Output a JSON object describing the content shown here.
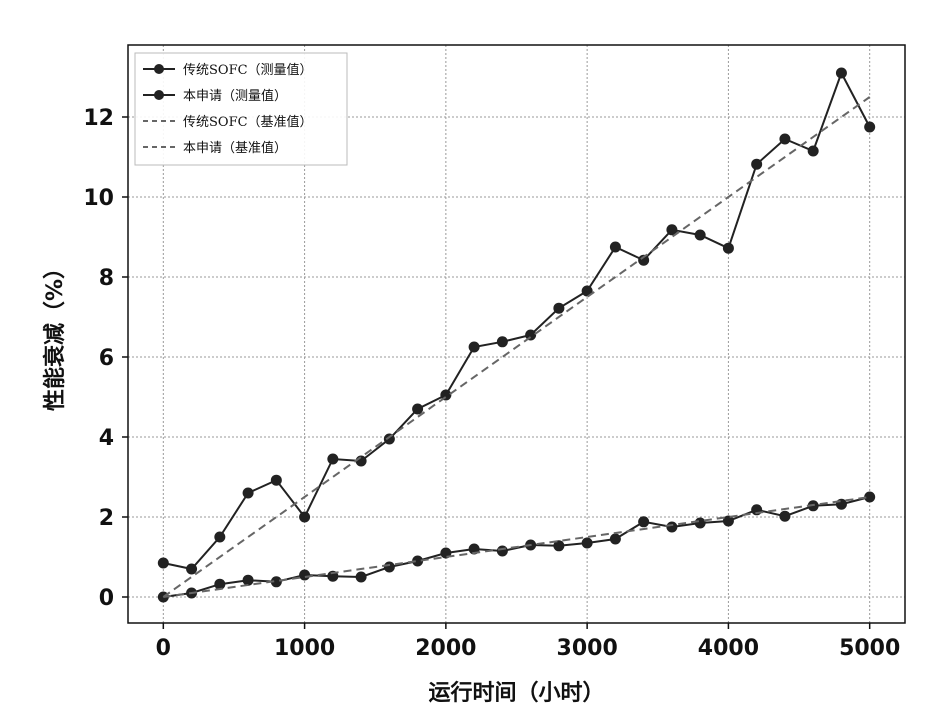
{
  "chart_data": {
    "type": "line",
    "title": "",
    "xlabel": "运行时间（小时）",
    "ylabel": "性能衰减（%）",
    "xlim": [
      -250,
      5250
    ],
    "ylim": [
      -0.65,
      13.8
    ],
    "xticks": [
      0,
      1000,
      2000,
      3000,
      4000,
      5000
    ],
    "yticks": [
      0,
      2,
      4,
      6,
      8,
      10,
      12
    ],
    "xtick_labels": [
      "0",
      "1000",
      "2000",
      "3000",
      "4000",
      "5000"
    ],
    "ytick_labels": [
      "0",
      "2",
      "4",
      "6",
      "8",
      "10",
      "12"
    ],
    "grid": true,
    "legend_position": "top-left",
    "series": [
      {
        "name": "传统SOFC（测量值）",
        "style": "solid-marker",
        "x": [
          0,
          200,
          400,
          600,
          800,
          1000,
          1200,
          1400,
          1600,
          1800,
          2000,
          2200,
          2400,
          2600,
          2800,
          3000,
          3200,
          3400,
          3600,
          3800,
          4000,
          4200,
          4400,
          4600,
          4800,
          5000
        ],
        "y": [
          0.85,
          0.7,
          1.5,
          2.6,
          2.92,
          2.0,
          3.45,
          3.4,
          3.95,
          4.7,
          5.05,
          6.25,
          6.38,
          6.55,
          7.22,
          7.65,
          8.75,
          8.42,
          9.18,
          9.05,
          8.72,
          10.82,
          11.45,
          11.15,
          13.1,
          11.75
        ]
      },
      {
        "name": "本申请（测量值）",
        "style": "solid-marker",
        "x": [
          0,
          200,
          400,
          600,
          800,
          1000,
          1200,
          1400,
          1600,
          1800,
          2000,
          2200,
          2400,
          2600,
          2800,
          3000,
          3200,
          3400,
          3600,
          3800,
          4000,
          4200,
          4400,
          4600,
          4800,
          5000
        ],
        "y": [
          0.0,
          0.1,
          0.32,
          0.42,
          0.38,
          0.55,
          0.52,
          0.5,
          0.75,
          0.9,
          1.1,
          1.2,
          1.15,
          1.3,
          1.28,
          1.35,
          1.45,
          1.88,
          1.75,
          1.85,
          1.9,
          2.18,
          2.02,
          2.28,
          2.32,
          2.5
        ]
      },
      {
        "name": "传统SOFC（基准值）",
        "style": "dashed",
        "x": [
          0,
          5000
        ],
        "y": [
          0.0,
          12.5
        ]
      },
      {
        "name": "本申请（基准值）",
        "style": "dashed",
        "x": [
          0,
          5000
        ],
        "y": [
          0.0,
          2.5
        ]
      }
    ]
  },
  "colors": {
    "series_line": "#222222",
    "marker": "#222222",
    "dash": "#666666",
    "grid": "#9a9a9a",
    "axis": "#111111"
  }
}
